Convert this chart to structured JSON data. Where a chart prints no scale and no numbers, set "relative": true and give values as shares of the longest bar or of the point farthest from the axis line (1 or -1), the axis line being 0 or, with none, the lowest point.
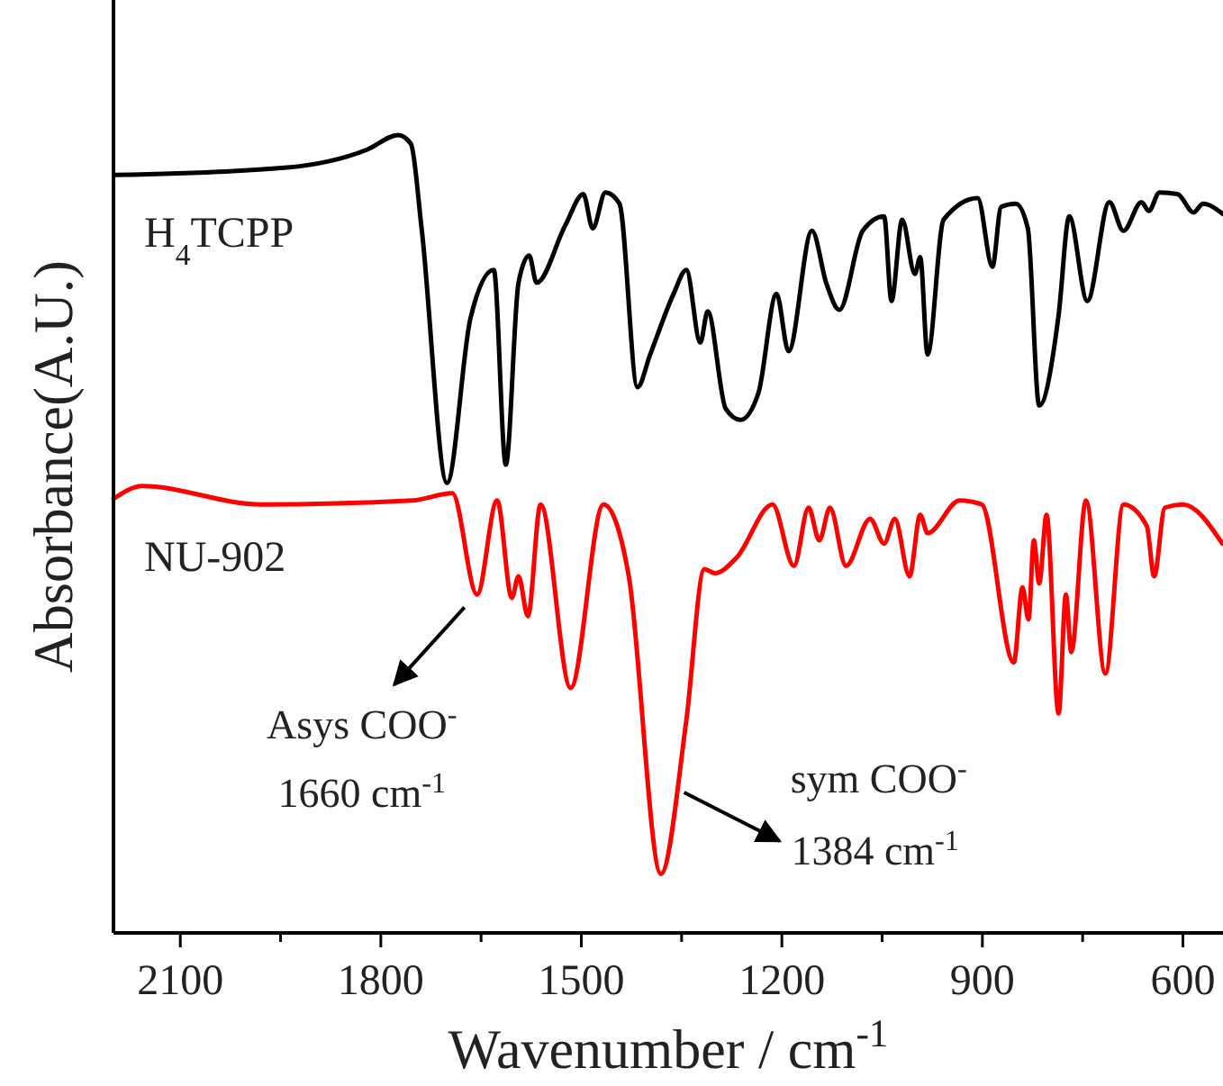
{
  "chart_data": {
    "type": "line",
    "relative": true,
    "xlabel": "Wavenumber / cm$^{-1}$",
    "ylabel": "Absorbance(A.U.)",
    "xlim": [
      2200,
      540
    ],
    "xticks": [
      2100,
      {
        "value": 1950,
        "label": null
      },
      1800,
      {
        "value": 1650,
        "label": null
      },
      1500,
      {
        "value": 1350,
        "label": null
      },
      1200,
      {
        "value": 1050,
        "label": null
      },
      900,
      {
        "value": 750,
        "label": null
      },
      600
    ],
    "tick_labels": "x",
    "grid": false,
    "marker": "none",
    "line_style": "solid",
    "series": [
      {
        "name": "H$_{4}$TCPP",
        "color": "#000000",
        "x": [
          2197,
          1944,
          1820,
          1774,
          1755,
          1739,
          1701,
          1666,
          1631,
          1613,
          1594,
          1578,
          1567,
          1524,
          1497,
          1483,
          1464,
          1443,
          1416,
          1397,
          1362,
          1343,
          1322,
          1311,
          1284,
          1262,
          1235,
          1208,
          1190,
          1155,
          1133,
          1114,
          1079,
          1047,
          1036,
          1020,
          1001,
          993,
          982,
          958,
          907,
          885,
          872,
          850,
          832,
          815,
          786,
          770,
          743,
          710,
          689,
          662,
          651,
          635,
          608,
          584,
          570,
          540
        ],
        "values": [
          0.95,
          0.959,
          0.982,
          1.0,
          0.989,
          0.883,
          0.564,
          0.77,
          0.831,
          0.587,
          0.815,
          0.849,
          0.815,
          0.887,
          0.926,
          0.883,
          0.928,
          0.914,
          0.684,
          0.725,
          0.801,
          0.831,
          0.74,
          0.779,
          0.657,
          0.643,
          0.677,
          0.801,
          0.729,
          0.88,
          0.813,
          0.781,
          0.88,
          0.898,
          0.792,
          0.894,
          0.826,
          0.847,
          0.725,
          0.894,
          0.921,
          0.835,
          0.91,
          0.914,
          0.883,
          0.661,
          0.774,
          0.898,
          0.792,
          0.916,
          0.88,
          0.916,
          0.905,
          0.928,
          0.926,
          0.903,
          0.914,
          0.901
        ]
      },
      {
        "name": "NU-902",
        "color": "#ff0000",
        "x": [
          2200,
          2157,
          1979,
          1753,
          1693,
          1656,
          1626,
          1604,
          1594,
          1580,
          1561,
          1516,
          1467,
          1429,
          1381,
          1343,
          1316,
          1300,
          1268,
          1214,
          1182,
          1160,
          1144,
          1128,
          1104,
          1068,
          1047,
          1031,
          1009,
          993,
          982,
          934,
          901,
          853,
          840,
          831,
          823,
          815,
          804,
          786,
          775,
          767,
          745,
          716,
          689,
          654,
          643,
          627,
          600,
          541
        ],
        "values": [
          0.544,
          0.56,
          0.537,
          0.542,
          0.551,
          0.424,
          0.542,
          0.42,
          0.447,
          0.397,
          0.537,
          0.307,
          0.537,
          0.447,
          0.074,
          0.266,
          0.456,
          0.451,
          0.47,
          0.537,
          0.46,
          0.533,
          0.492,
          0.533,
          0.46,
          0.519,
          0.488,
          0.519,
          0.447,
          0.524,
          0.501,
          0.542,
          0.537,
          0.339,
          0.433,
          0.393,
          0.492,
          0.438,
          0.524,
          0.275,
          0.424,
          0.352,
          0.542,
          0.325,
          0.537,
          0.51,
          0.447,
          0.533,
          0.537,
          0.488
        ]
      }
    ],
    "annotations": [
      {
        "text": "Asys COO$^{-}$",
        "x": 1656,
        "y": 0.424
      },
      "1660 cm$^{-1}$",
      {
        "text": "sym COO$^{-}$",
        "x": 1357,
        "y": 0.176
      },
      "1384 cm$^{-1}$"
    ]
  }
}
